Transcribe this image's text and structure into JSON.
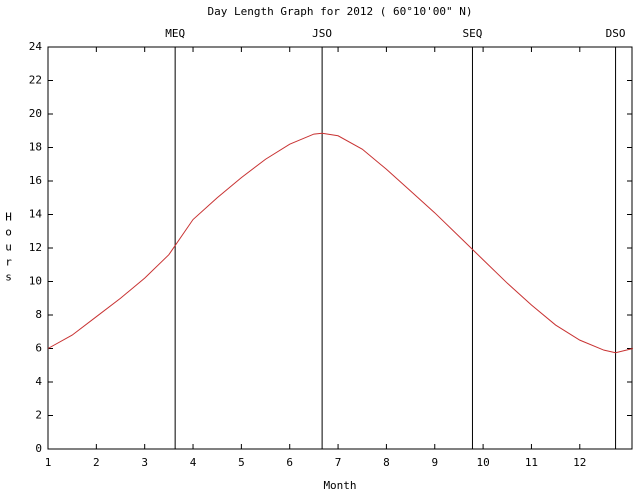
{
  "chart_data": {
    "type": "line",
    "title": "Day Length Graph for 2012 ( 60°10'00\" N)",
    "x_label": "Month",
    "y_label": "Hours",
    "x": [
      1,
      1.5,
      2,
      2.5,
      3,
      3.5,
      4,
      4.5,
      5,
      5.5,
      6,
      6.5,
      6.67,
      7,
      7.5,
      8,
      8.5,
      9,
      9.5,
      10,
      10.5,
      11,
      11.5,
      12,
      12.5,
      12.74,
      13.1
    ],
    "series": [
      {
        "name": "Day length",
        "color": "#c83232",
        "values": [
          6.0,
          6.8,
          7.9,
          9.0,
          10.2,
          11.6,
          13.7,
          15.0,
          16.2,
          17.3,
          18.2,
          18.8,
          18.85,
          18.7,
          17.9,
          16.7,
          15.4,
          14.1,
          12.7,
          11.3,
          9.9,
          8.6,
          7.4,
          6.5,
          5.9,
          5.75,
          6.0
        ]
      }
    ],
    "markers": [
      {
        "label": "MEQ",
        "x": 3.63
      },
      {
        "label": "JSO",
        "x": 6.67
      },
      {
        "label": "SEQ",
        "x": 9.78
      },
      {
        "label": "DSO",
        "x": 12.74
      }
    ],
    "xlim": [
      1,
      13.08
    ],
    "ylim": [
      0,
      24
    ],
    "xticks": [
      1,
      2,
      3,
      4,
      5,
      6,
      7,
      8,
      9,
      10,
      11,
      12
    ],
    "yticks": [
      0,
      2,
      4,
      6,
      8,
      10,
      12,
      14,
      16,
      18,
      20,
      22,
      24
    ]
  }
}
